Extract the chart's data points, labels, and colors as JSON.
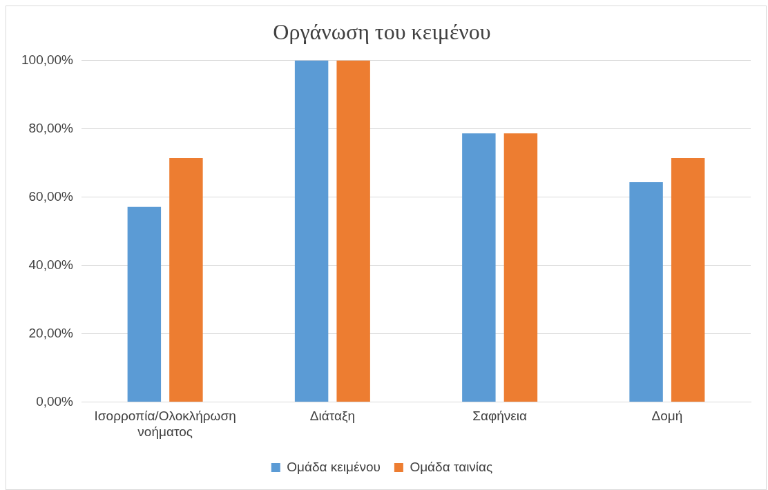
{
  "chart_data": {
    "type": "bar",
    "title": "Οργάνωση του κειμένου",
    "categories": [
      "Ισορροπία/Ολοκλήρωση νοήματος",
      "Διάταξη",
      "Σαφήνεια",
      "Δομή"
    ],
    "series": [
      {
        "name": "Ομάδα κειμένου",
        "color": "#5b9bd5",
        "values": [
          57.1,
          100,
          78.6,
          64.3
        ]
      },
      {
        "name": "Ομάδα ταινίας",
        "color": "#ed7d31",
        "values": [
          71.4,
          100,
          78.6,
          71.4
        ]
      }
    ],
    "ylim": [
      0,
      100
    ],
    "yticks": [
      {
        "value": 0,
        "label": "0,00%"
      },
      {
        "value": 20,
        "label": "20,00%"
      },
      {
        "value": 40,
        "label": "40,00%"
      },
      {
        "value": 60,
        "label": "60,00%"
      },
      {
        "value": 80,
        "label": "80,00%"
      },
      {
        "value": 100,
        "label": "100,00%"
      }
    ],
    "grid": "y",
    "legend": "bottom"
  }
}
